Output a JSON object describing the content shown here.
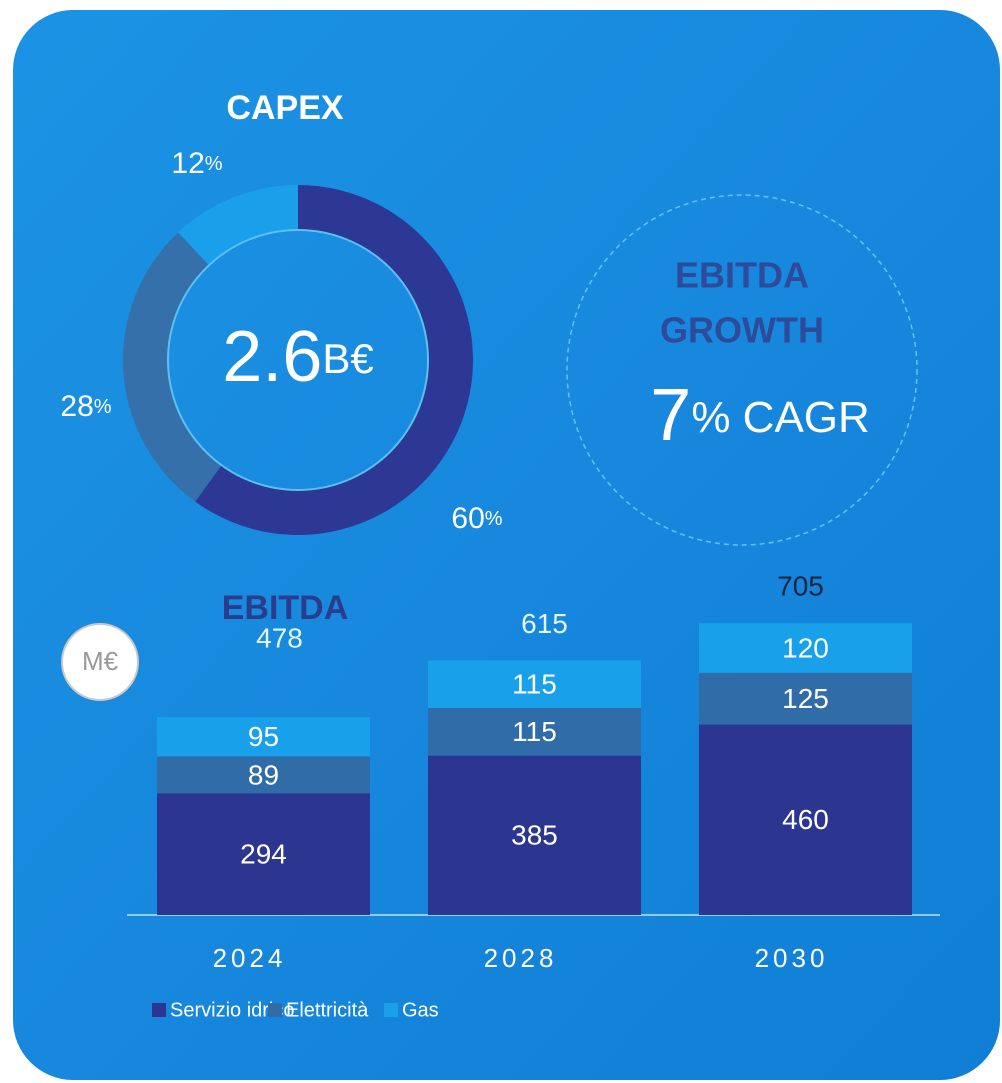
{
  "chart_data": [
    {
      "type": "donut",
      "title": "CAPEX",
      "center_value": "2.6",
      "center_unit": "B€",
      "values": [
        60,
        28,
        12
      ],
      "value_labels": [
        "60%",
        "28%",
        "12%"
      ],
      "colors": [
        "#2c3893",
        "#3570ab",
        "#1aa0ea"
      ]
    },
    {
      "type": "stacked_bar",
      "title": "EBITDA",
      "unit": "M€",
      "categories": [
        "2024",
        "2028",
        "2030"
      ],
      "series": [
        {
          "name": "Servizio idrico",
          "color": "#2c3690",
          "values": [
            294,
            385,
            460
          ]
        },
        {
          "name": "Elettricità",
          "color": "#2f6ca8",
          "values": [
            89,
            115,
            125
          ]
        },
        {
          "name": "Gas",
          "color": "#19a0ea",
          "values": [
            95,
            115,
            120
          ]
        }
      ],
      "totals": [
        478,
        615,
        705
      ]
    }
  ],
  "growth": {
    "title": [
      "EBITDA",
      "GROWTH"
    ],
    "value": "7",
    "unit": "% CAGR"
  }
}
